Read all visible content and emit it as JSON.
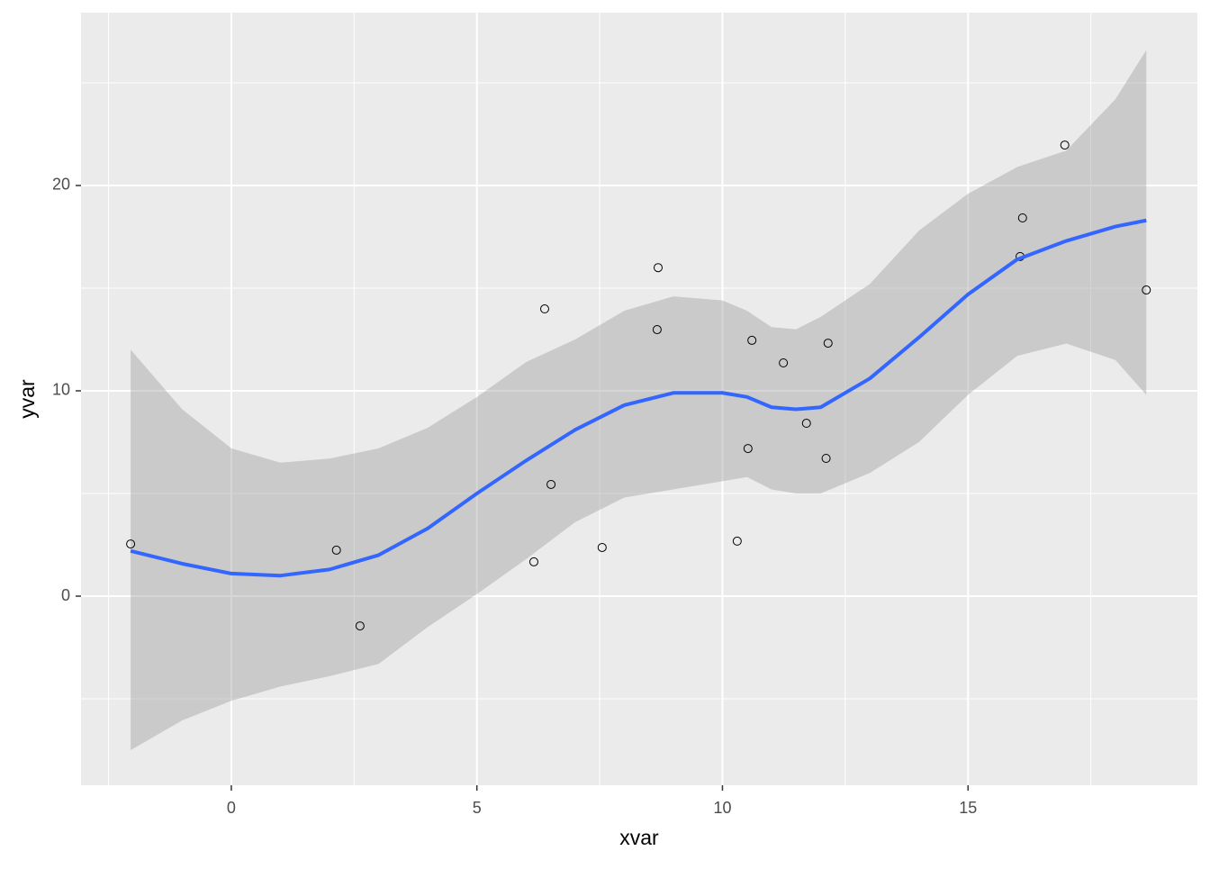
{
  "chart_data": {
    "type": "scatter",
    "x_label": "xvar",
    "y_label": "yvar",
    "series": [
      {
        "x": [
          -2.05,
          2.14,
          2.62,
          6.16,
          6.38,
          6.51,
          7.55,
          8.69,
          8.67,
          10.3,
          10.52,
          10.6,
          11.24,
          11.71,
          12.11,
          12.15,
          16.06,
          16.11,
          16.97,
          18.63
        ],
        "values": [
          2.54,
          2.24,
          -1.45,
          1.67,
          13.99,
          5.44,
          2.37,
          16.0,
          12.98,
          2.68,
          7.19,
          12.46,
          11.36,
          8.42,
          6.71,
          12.32,
          16.54,
          18.42,
          21.97,
          14.91
        ],
        "color": "#000000"
      }
    ],
    "smooth": {
      "color": "#3366ff",
      "ribbon_color": "#999999",
      "x": [
        -2.05,
        -1,
        0,
        1,
        2,
        3,
        4,
        5,
        6,
        7,
        8,
        9,
        10,
        10.5,
        11,
        11.5,
        12,
        13,
        14,
        15,
        16,
        17,
        18,
        18.63
      ],
      "values": [
        2.2,
        1.58,
        1.1,
        1.0,
        1.3,
        2.0,
        3.3,
        5.0,
        6.6,
        8.1,
        9.3,
        9.9,
        9.9,
        9.7,
        9.2,
        9.1,
        9.2,
        10.6,
        12.6,
        14.7,
        16.4,
        17.3,
        18.0,
        18.3
      ],
      "ymax": [
        12.0,
        9.1,
        7.2,
        6.5,
        6.7,
        7.2,
        8.2,
        9.7,
        11.4,
        12.5,
        13.9,
        14.6,
        14.4,
        13.9,
        13.1,
        13.0,
        13.6,
        15.2,
        17.8,
        19.6,
        20.9,
        21.7,
        24.2,
        26.6
      ],
      "ymin": [
        -7.5,
        -6.05,
        -5.1,
        -4.4,
        -3.9,
        -3.3,
        -1.5,
        0.1,
        1.8,
        3.6,
        4.8,
        5.2,
        5.6,
        5.8,
        5.2,
        5.0,
        5.0,
        6.0,
        7.5,
        9.8,
        11.7,
        12.3,
        11.5,
        9.8
      ]
    },
    "xlim": [
      -3.06,
      19.67
    ],
    "xticks": [
      0,
      5,
      10,
      15
    ],
    "xminor": [
      -2.5,
      2.5,
      7.5,
      12.5,
      17.5
    ],
    "ylim": [
      -9.21,
      28.42
    ],
    "yticks": [
      0,
      10,
      20
    ],
    "yminor": [
      -5,
      5,
      15,
      25
    ],
    "grid": true,
    "panel_color": "#ebebeb"
  }
}
